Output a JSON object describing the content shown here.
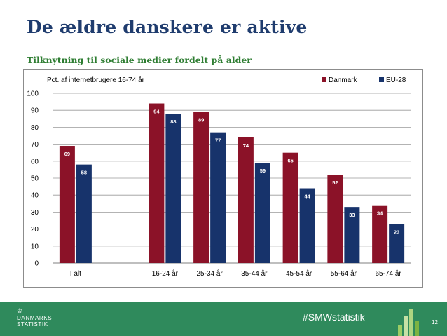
{
  "title": "De ældre danskere er aktive",
  "subtitle": "Tilknytning til sociale medier fordelt på alder",
  "chart_data": {
    "type": "bar",
    "unit_label": "Pct. af internetbrugere 16-74 år",
    "categories": [
      "I alt",
      "",
      "16-24 år",
      "25-34 år",
      "35-44 år",
      "45-54 år",
      "55-64 år",
      "65-74 år"
    ],
    "series": [
      {
        "name": "Danmark",
        "color": "#8b1228",
        "values": [
          69,
          null,
          94,
          89,
          74,
          65,
          52,
          34
        ]
      },
      {
        "name": "EU-28",
        "color": "#17336b",
        "values": [
          58,
          null,
          88,
          77,
          59,
          44,
          33,
          23
        ]
      }
    ],
    "ylim": [
      0,
      100
    ],
    "yticks": [
      0,
      10,
      20,
      30,
      40,
      50,
      60,
      70,
      80,
      90,
      100
    ],
    "grid": true,
    "legend_position": "top-right"
  },
  "footer": {
    "logo_line1": "DANMARKS",
    "logo_line2": "STATISTIK",
    "hashtag": "#SMWstatistik",
    "page_number": "12",
    "background_color": "#2f8a5c"
  }
}
